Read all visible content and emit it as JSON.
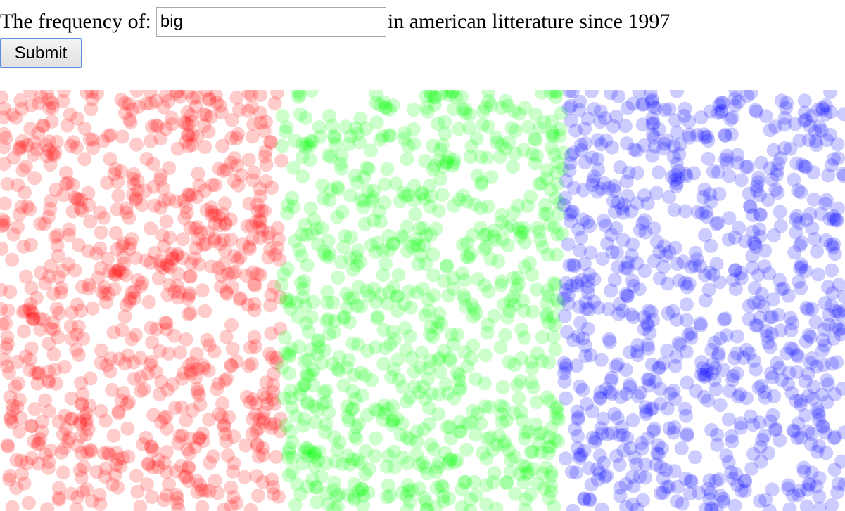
{
  "query": {
    "prefix": "The frequency of:",
    "input_value": "big",
    "suffix": "in american litterature since 1997"
  },
  "submit": {
    "label": "Submit"
  },
  "visualization": {
    "regions": [
      {
        "color": "#ff0000"
      },
      {
        "color": "#00ff00"
      },
      {
        "color": "#0000ff"
      }
    ]
  }
}
